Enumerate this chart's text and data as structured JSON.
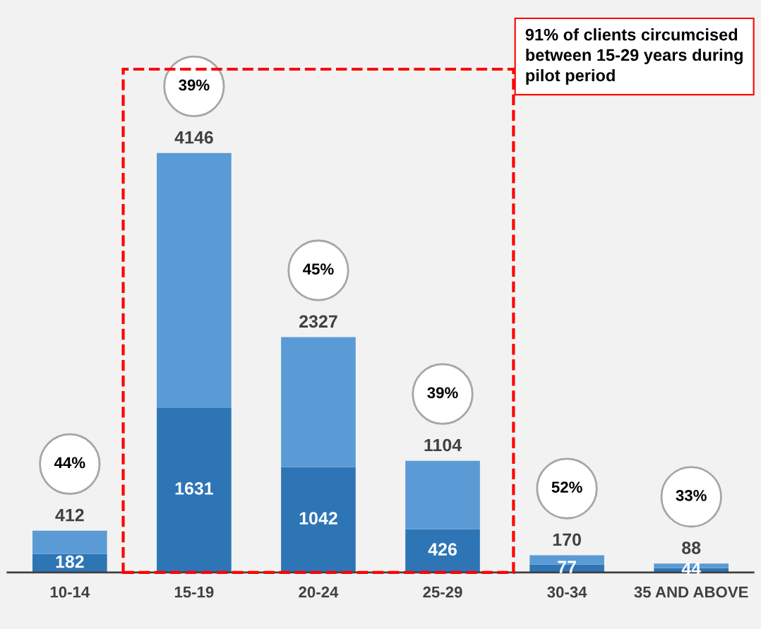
{
  "chart_data": {
    "type": "bar",
    "categories": [
      "10-14",
      "15-19",
      "20-24",
      "25-29",
      "30-34",
      "35 AND ABOVE"
    ],
    "stacked": true,
    "series": [
      {
        "color": "#2e75b6",
        "values": [
          182,
          1631,
          1042,
          426,
          77,
          44
        ],
        "value_labels": [
          "182",
          "1631",
          "1042",
          "426",
          "77",
          "44"
        ]
      },
      {
        "color": "#5b9bd5",
        "values": [
          230,
          2515,
          1285,
          678,
          93,
          44
        ]
      }
    ],
    "totals": [
      "412",
      "4146",
      "2327",
      "1104",
      "170",
      "88"
    ],
    "tick_labels": "x",
    "grid": false,
    "annotations": [
      "44%",
      "39%",
      "45%",
      "39%",
      "52%",
      "33%",
      "91% of clients circumcised between 15-29 years during pilot period"
    ]
  }
}
